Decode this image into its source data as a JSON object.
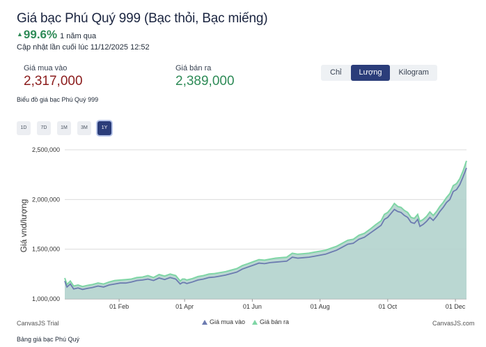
{
  "header": {
    "title": "Giá bạc Phú Quý 999 (Bạc thỏi, Bạc miếng)",
    "change_arrow": "▲",
    "change_percent": "99.6%",
    "change_period": "1 năm qua",
    "updated": "Cập nhật lần cuối lúc 11/12/2025 12:52"
  },
  "prices": {
    "buy_label": "Giá mua vào",
    "buy_value": "2,317,000",
    "sell_label": "Giá bán ra",
    "sell_value": "2,389,000"
  },
  "unit_tabs": [
    "Chỉ",
    "Lượng",
    "Kilogram"
  ],
  "unit_selected": "Lượng",
  "chart_caption": "Biểu đồ giá bạc Phú Quý 999",
  "range_buttons": [
    "1D",
    "7D",
    "1M",
    "3M",
    "1Y"
  ],
  "range_selected": "1Y",
  "colors": {
    "buy": "#6c7bb0",
    "sell": "#7fd6a5",
    "accent": "#2b3d7a",
    "fill": "#b3d3cd"
  },
  "chart_data": {
    "type": "area",
    "ylabel": "Giá vnd/lượng",
    "ylim": [
      1000000,
      2500000
    ],
    "y_ticks": [
      1000000,
      1500000,
      2000000,
      2500000
    ],
    "y_tick_labels": [
      "1,000,000",
      "1,500,000",
      "2,000,000",
      "2,500,000"
    ],
    "x_tick_labels": [
      "01 Feb",
      "01 Apr",
      "01 Jun",
      "01 Aug",
      "01 Oct",
      "01 Dec"
    ],
    "x_tick_days": [
      49,
      108,
      169,
      230,
      291,
      352
    ],
    "x_range_days": [
      0,
      362
    ],
    "series": [
      {
        "name": "Giá mua vào",
        "color": "#6c7bb0",
        "x": [
          0,
          2,
          5,
          8,
          12,
          16,
          20,
          25,
          30,
          35,
          40,
          45,
          50,
          55,
          60,
          65,
          70,
          75,
          80,
          85,
          90,
          95,
          100,
          104,
          106,
          108,
          110,
          115,
          120,
          125,
          130,
          135,
          140,
          145,
          150,
          155,
          160,
          165,
          170,
          175,
          180,
          185,
          190,
          195,
          200,
          205,
          210,
          215,
          220,
          225,
          230,
          235,
          240,
          245,
          250,
          255,
          260,
          265,
          270,
          275,
          280,
          285,
          288,
          291,
          294,
          297,
          300,
          303,
          306,
          309,
          312,
          315,
          318,
          320,
          323,
          326,
          329,
          332,
          335,
          338,
          341,
          344,
          347,
          350,
          353,
          356,
          359,
          362
        ],
        "values": [
          1180000,
          1120000,
          1150000,
          1100000,
          1110000,
          1095000,
          1105000,
          1115000,
          1130000,
          1120000,
          1140000,
          1150000,
          1160000,
          1160000,
          1170000,
          1185000,
          1190000,
          1200000,
          1185000,
          1210000,
          1195000,
          1215000,
          1200000,
          1150000,
          1165000,
          1165000,
          1155000,
          1170000,
          1190000,
          1200000,
          1215000,
          1220000,
          1230000,
          1240000,
          1255000,
          1270000,
          1300000,
          1320000,
          1340000,
          1360000,
          1355000,
          1365000,
          1370000,
          1375000,
          1380000,
          1420000,
          1410000,
          1415000,
          1420000,
          1430000,
          1440000,
          1450000,
          1470000,
          1490000,
          1520000,
          1550000,
          1560000,
          1600000,
          1620000,
          1660000,
          1700000,
          1740000,
          1800000,
          1820000,
          1860000,
          1900000,
          1880000,
          1870000,
          1840000,
          1820000,
          1770000,
          1760000,
          1800000,
          1730000,
          1750000,
          1780000,
          1820000,
          1790000,
          1830000,
          1880000,
          1920000,
          1970000,
          2000000,
          2080000,
          2100000,
          2150000,
          2230000,
          2317000
        ]
      },
      {
        "name": "Giá bán ra",
        "color": "#7fd6a5",
        "x": [
          0,
          2,
          5,
          8,
          12,
          16,
          20,
          25,
          30,
          35,
          40,
          45,
          50,
          55,
          60,
          65,
          70,
          75,
          80,
          85,
          90,
          95,
          100,
          104,
          106,
          108,
          110,
          115,
          120,
          125,
          130,
          135,
          140,
          145,
          150,
          155,
          160,
          165,
          170,
          175,
          180,
          185,
          190,
          195,
          200,
          205,
          210,
          215,
          220,
          225,
          230,
          235,
          240,
          245,
          250,
          255,
          260,
          265,
          270,
          275,
          280,
          285,
          288,
          291,
          294,
          297,
          300,
          303,
          306,
          309,
          312,
          315,
          318,
          320,
          323,
          326,
          329,
          332,
          335,
          338,
          341,
          344,
          347,
          350,
          353,
          356,
          359,
          362
        ],
        "values": [
          1210000,
          1145000,
          1180000,
          1130000,
          1140000,
          1125000,
          1135000,
          1145000,
          1160000,
          1150000,
          1170000,
          1185000,
          1190000,
          1195000,
          1200000,
          1215000,
          1220000,
          1235000,
          1215000,
          1245000,
          1230000,
          1250000,
          1235000,
          1180000,
          1200000,
          1200000,
          1190000,
          1205000,
          1225000,
          1235000,
          1250000,
          1255000,
          1265000,
          1275000,
          1290000,
          1305000,
          1335000,
          1355000,
          1375000,
          1395000,
          1390000,
          1400000,
          1410000,
          1415000,
          1420000,
          1460000,
          1450000,
          1455000,
          1460000,
          1470000,
          1480000,
          1490000,
          1510000,
          1530000,
          1560000,
          1590000,
          1600000,
          1640000,
          1660000,
          1700000,
          1745000,
          1785000,
          1850000,
          1870000,
          1910000,
          1960000,
          1930000,
          1920000,
          1890000,
          1870000,
          1820000,
          1810000,
          1850000,
          1780000,
          1800000,
          1830000,
          1875000,
          1840000,
          1880000,
          1930000,
          1970000,
          2020000,
          2060000,
          2140000,
          2160000,
          2210000,
          2290000,
          2389000
        ]
      }
    ],
    "credit_left": "CanvasJS Trial",
    "credit_right": "CanvasJS.com"
  },
  "footer_link": "Bảng giá bạc Phú Quý"
}
